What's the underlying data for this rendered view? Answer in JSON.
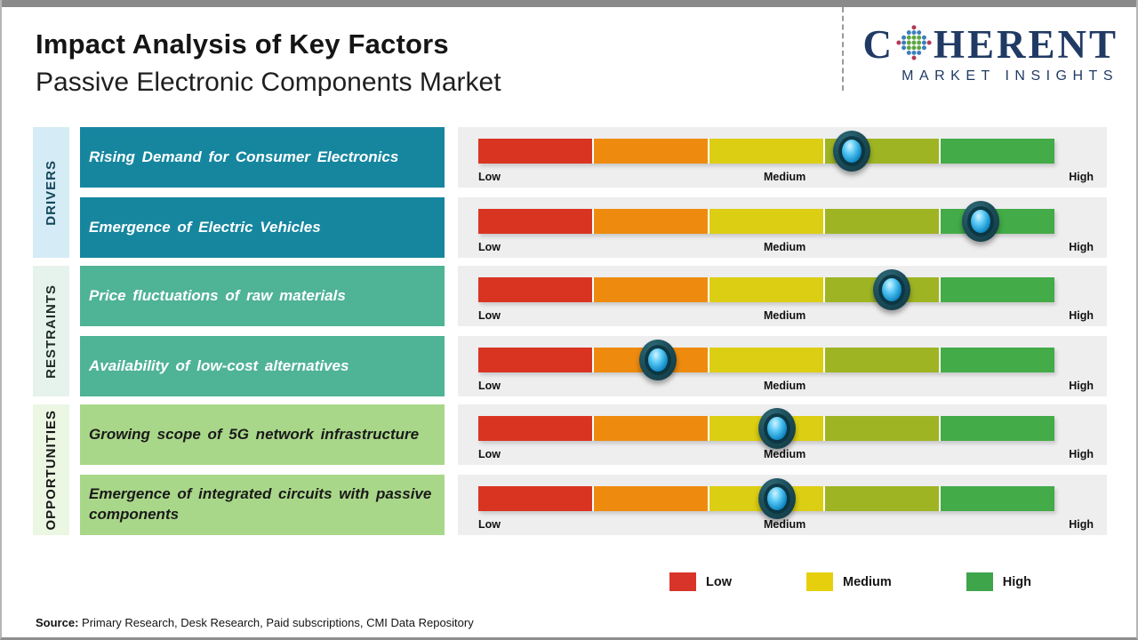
{
  "header": {
    "title": "Impact Analysis of Key Factors",
    "subtitle": "Passive Electronic Components Market"
  },
  "logo": {
    "word_start": "C",
    "word_end": "HERENT",
    "tagline": "MARKET INSIGHTS",
    "color": "#203a64"
  },
  "scale_segments": [
    "#d93422",
    "#ee8b0e",
    "#dcce12",
    "#9eb423",
    "#43ab47"
  ],
  "groups": [
    {
      "name": "DRIVERS",
      "strip_bg": "#d5ebf6",
      "strip_text": "#14465a",
      "box_bg": "#16869f",
      "box_text": "#ffffff",
      "factors": [
        {
          "label": "Rising Demand for Consumer Electronics",
          "impact_pct": 64.8
        },
        {
          "label": "Emergence of Electric Vehicles",
          "impact_pct": 87.2
        }
      ]
    },
    {
      "name": "RESTRAINTS",
      "strip_bg": "#e6f2ec",
      "strip_text": "#1d2b26",
      "box_bg": "#4fb396",
      "box_text": "#ffffff",
      "factors": [
        {
          "label": "Price fluctuations of raw materials",
          "impact_pct": 71.8
        },
        {
          "label": "Availability of low-cost alternatives",
          "impact_pct": 31.2
        }
      ]
    },
    {
      "name": "OPPORTUNITIES",
      "strip_bg": "#ebf6e3",
      "strip_text": "#161616",
      "box_bg": "#a9d789",
      "box_text": "#1a1a1a",
      "factors": [
        {
          "label": "Growing scope of 5G network infrastructure",
          "impact_pct": 51.9
        },
        {
          "label": "Emergence of integrated circuits with passive components",
          "impact_pct": 51.9
        }
      ]
    }
  ],
  "scale": {
    "low": "Low",
    "medium": "Medium",
    "high": "High"
  },
  "legend": {
    "items": [
      {
        "label": "Low",
        "color": "#d9342a"
      },
      {
        "label": "Medium",
        "color": "#e6d00d"
      },
      {
        "label": "High",
        "color": "#3ea54b"
      }
    ]
  },
  "source": {
    "label": "Source:",
    "text": " Primary Research, Desk Research, Paid subscriptions, CMI Data Repository"
  },
  "chart_data": {
    "type": "bar",
    "title": "Impact Analysis of Key Factors",
    "subtitle": "Passive Electronic Components Market",
    "categories": [
      "Rising Demand for Consumer Electronics",
      "Emergence of Electric Vehicles",
      "Price fluctuations of raw materials",
      "Availability of low-cost alternatives",
      "Growing scope of 5G network infrastructure",
      "Emergence of integrated circuits with passive components"
    ],
    "groups": [
      "Drivers",
      "Drivers",
      "Restraints",
      "Restraints",
      "Opportunities",
      "Opportunities"
    ],
    "series": [
      {
        "name": "Impact position (0 = Low, 50 = Medium, 100 = High)",
        "values": [
          65,
          87,
          72,
          31,
          52,
          52
        ]
      }
    ],
    "scale_ticks": [
      "Low",
      "Medium",
      "High"
    ],
    "legend_entries": [
      "Low",
      "Medium",
      "High"
    ],
    "xlim": [
      0,
      100
    ],
    "segment_colors": [
      "#d93422",
      "#ee8b0e",
      "#dcce12",
      "#9eb423",
      "#43ab47"
    ]
  }
}
